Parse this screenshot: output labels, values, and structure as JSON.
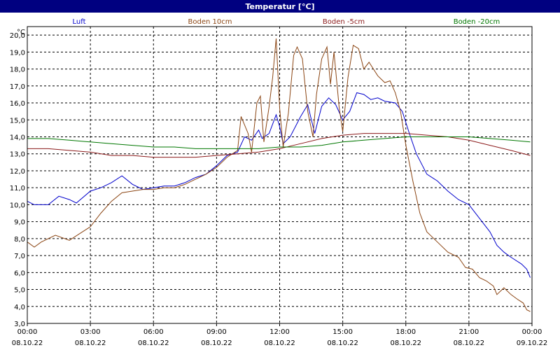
{
  "chart_data": {
    "type": "line",
    "title": "Temperatur [°C]",
    "ylabel": "°C",
    "ylim": [
      3.0,
      20.5
    ],
    "xlim": [
      "2022-10-08T00:00",
      "2022-10-09T00:00"
    ],
    "grid": true,
    "legend_position": "top",
    "y_ticks": [
      "3,0",
      "4,0",
      "5,0",
      "6,0",
      "7,0",
      "8,0",
      "9,0",
      "10,0",
      "11,0",
      "12,0",
      "13,0",
      "14,0",
      "15,0",
      "16,0",
      "17,0",
      "18,0",
      "19,0",
      "20,0"
    ],
    "y_tick_values": [
      3,
      4,
      5,
      6,
      7,
      8,
      9,
      10,
      11,
      12,
      13,
      14,
      15,
      16,
      17,
      18,
      19,
      20
    ],
    "x_ticks": [
      {
        "time": "00:00",
        "date": "08.10.22"
      },
      {
        "time": "03:00",
        "date": "08.10.22"
      },
      {
        "time": "06:00",
        "date": "08.10.22"
      },
      {
        "time": "09:00",
        "date": "08.10.22"
      },
      {
        "time": "12:00",
        "date": "08.10.22"
      },
      {
        "time": "15:00",
        "date": "08.10.22"
      },
      {
        "time": "18:00",
        "date": "08.10.22"
      },
      {
        "time": "21:00",
        "date": "08.10.22"
      },
      {
        "time": "00:00",
        "date": "09.10.22"
      }
    ],
    "x_tick_hours": [
      0,
      3,
      6,
      9,
      12,
      15,
      18,
      21,
      24
    ],
    "series": [
      {
        "name": "Luft",
        "color": "#0000cc",
        "points": [
          [
            "2022-10-08T00:00",
            10.2
          ],
          [
            "2022-10-08T00:20",
            10.0
          ],
          [
            "2022-10-08T01:00",
            10.0
          ],
          [
            "2022-10-08T01:30",
            10.5
          ],
          [
            "2022-10-08T02:00",
            10.3
          ],
          [
            "2022-10-08T02:20",
            10.1
          ],
          [
            "2022-10-08T03:00",
            10.8
          ],
          [
            "2022-10-08T03:30",
            11.0
          ],
          [
            "2022-10-08T04:00",
            11.3
          ],
          [
            "2022-10-08T04:30",
            11.7
          ],
          [
            "2022-10-08T05:00",
            11.2
          ],
          [
            "2022-10-08T05:30",
            10.9
          ],
          [
            "2022-10-08T06:00",
            11.0
          ],
          [
            "2022-10-08T06:30",
            11.1
          ],
          [
            "2022-10-08T07:00",
            11.1
          ],
          [
            "2022-10-08T07:30",
            11.3
          ],
          [
            "2022-10-08T08:00",
            11.6
          ],
          [
            "2022-10-08T08:30",
            11.8
          ],
          [
            "2022-10-08T09:00",
            12.3
          ],
          [
            "2022-10-08T09:30",
            12.9
          ],
          [
            "2022-10-08T10:00",
            13.1
          ],
          [
            "2022-10-08T10:20",
            14.0
          ],
          [
            "2022-10-08T10:40",
            13.8
          ],
          [
            "2022-10-08T11:00",
            14.4
          ],
          [
            "2022-10-08T11:10",
            13.9
          ],
          [
            "2022-10-08T11:30",
            14.2
          ],
          [
            "2022-10-08T11:50",
            15.3
          ],
          [
            "2022-10-08T12:00",
            14.6
          ],
          [
            "2022-10-08T12:10",
            13.6
          ],
          [
            "2022-10-08T12:30",
            14.0
          ],
          [
            "2022-10-08T13:00",
            15.2
          ],
          [
            "2022-10-08T13:20",
            15.9
          ],
          [
            "2022-10-08T13:40",
            14.2
          ],
          [
            "2022-10-08T14:00",
            15.8
          ],
          [
            "2022-10-08T14:20",
            16.3
          ],
          [
            "2022-10-08T14:40",
            15.9
          ],
          [
            "2022-10-08T15:00",
            15.0
          ],
          [
            "2022-10-08T15:20",
            15.5
          ],
          [
            "2022-10-08T15:40",
            16.6
          ],
          [
            "2022-10-08T16:00",
            16.5
          ],
          [
            "2022-10-08T16:20",
            16.2
          ],
          [
            "2022-10-08T16:40",
            16.3
          ],
          [
            "2022-10-08T17:00",
            16.1
          ],
          [
            "2022-10-08T17:30",
            16.0
          ],
          [
            "2022-10-08T17:50",
            15.5
          ],
          [
            "2022-10-08T18:10",
            14.2
          ],
          [
            "2022-10-08T18:30",
            13.0
          ],
          [
            "2022-10-08T19:00",
            11.8
          ],
          [
            "2022-10-08T19:30",
            11.4
          ],
          [
            "2022-10-08T20:00",
            10.8
          ],
          [
            "2022-10-08T20:30",
            10.3
          ],
          [
            "2022-10-08T21:00",
            10.0
          ],
          [
            "2022-10-08T21:30",
            9.2
          ],
          [
            "2022-10-08T22:00",
            8.4
          ],
          [
            "2022-10-08T22:20",
            7.6
          ],
          [
            "2022-10-08T22:40",
            7.2
          ],
          [
            "2022-10-08T23:00",
            6.9
          ],
          [
            "2022-10-08T23:30",
            6.5
          ],
          [
            "2022-10-08T23:45",
            6.2
          ],
          [
            "2022-10-08T23:55",
            5.7
          ]
        ]
      },
      {
        "name": "Boden 10cm",
        "color": "#8b4513",
        "points": [
          [
            "2022-10-08T00:00",
            7.8
          ],
          [
            "2022-10-08T00:20",
            7.5
          ],
          [
            "2022-10-08T00:40",
            7.8
          ],
          [
            "2022-10-08T01:20",
            8.2
          ],
          [
            "2022-10-08T02:00",
            7.9
          ],
          [
            "2022-10-08T02:30",
            8.3
          ],
          [
            "2022-10-08T03:00",
            8.7
          ],
          [
            "2022-10-08T03:30",
            9.5
          ],
          [
            "2022-10-08T04:00",
            10.2
          ],
          [
            "2022-10-08T04:30",
            10.7
          ],
          [
            "2022-10-08T05:00",
            10.8
          ],
          [
            "2022-10-08T05:30",
            10.9
          ],
          [
            "2022-10-08T06:00",
            10.9
          ],
          [
            "2022-10-08T06:30",
            11.0
          ],
          [
            "2022-10-08T07:00",
            11.0
          ],
          [
            "2022-10-08T07:30",
            11.2
          ],
          [
            "2022-10-08T08:00",
            11.5
          ],
          [
            "2022-10-08T08:30",
            11.8
          ],
          [
            "2022-10-08T09:00",
            12.2
          ],
          [
            "2022-10-08T09:30",
            12.8
          ],
          [
            "2022-10-08T10:00",
            13.2
          ],
          [
            "2022-10-08T10:10",
            15.2
          ],
          [
            "2022-10-08T10:30",
            14.2
          ],
          [
            "2022-10-08T10:40",
            13.1
          ],
          [
            "2022-10-08T10:55",
            16.0
          ],
          [
            "2022-10-08T11:05",
            16.4
          ],
          [
            "2022-10-08T11:15",
            13.7
          ],
          [
            "2022-10-08T11:30",
            15.8
          ],
          [
            "2022-10-08T11:40",
            17.5
          ],
          [
            "2022-10-08T11:50",
            19.8
          ],
          [
            "2022-10-08T12:00",
            15.7
          ],
          [
            "2022-10-08T12:10",
            13.4
          ],
          [
            "2022-10-08T12:25",
            15.4
          ],
          [
            "2022-10-08T12:40",
            18.8
          ],
          [
            "2022-10-08T12:50",
            19.3
          ],
          [
            "2022-10-08T13:05",
            18.6
          ],
          [
            "2022-10-08T13:20",
            15.5
          ],
          [
            "2022-10-08T13:35",
            14.0
          ],
          [
            "2022-10-08T13:45",
            16.5
          ],
          [
            "2022-10-08T14:00",
            18.6
          ],
          [
            "2022-10-08T14:15",
            19.3
          ],
          [
            "2022-10-08T14:25",
            17.1
          ],
          [
            "2022-10-08T14:35",
            19.0
          ],
          [
            "2022-10-08T14:50",
            15.7
          ],
          [
            "2022-10-08T15:00",
            14.3
          ],
          [
            "2022-10-08T15:15",
            17.5
          ],
          [
            "2022-10-08T15:30",
            19.4
          ],
          [
            "2022-10-08T15:45",
            19.2
          ],
          [
            "2022-10-08T16:00",
            18.0
          ],
          [
            "2022-10-08T16:15",
            18.4
          ],
          [
            "2022-10-08T16:40",
            17.6
          ],
          [
            "2022-10-08T17:00",
            17.2
          ],
          [
            "2022-10-08T17:15",
            17.3
          ],
          [
            "2022-10-08T17:30",
            16.6
          ],
          [
            "2022-10-08T17:45",
            15.5
          ],
          [
            "2022-10-08T18:00",
            13.5
          ],
          [
            "2022-10-08T18:20",
            11.4
          ],
          [
            "2022-10-08T18:40",
            9.5
          ],
          [
            "2022-10-08T19:00",
            8.4
          ],
          [
            "2022-10-08T19:30",
            7.8
          ],
          [
            "2022-10-08T20:00",
            7.2
          ],
          [
            "2022-10-08T20:30",
            6.9
          ],
          [
            "2022-10-08T20:50",
            6.3
          ],
          [
            "2022-10-08T21:10",
            6.2
          ],
          [
            "2022-10-08T21:30",
            5.7
          ],
          [
            "2022-10-08T21:50",
            5.5
          ],
          [
            "2022-10-08T22:10",
            5.2
          ],
          [
            "2022-10-08T22:20",
            4.7
          ],
          [
            "2022-10-08T22:40",
            5.1
          ],
          [
            "2022-10-08T23:00",
            4.7
          ],
          [
            "2022-10-08T23:20",
            4.4
          ],
          [
            "2022-10-08T23:35",
            4.2
          ],
          [
            "2022-10-08T23:45",
            3.8
          ],
          [
            "2022-10-08T23:55",
            3.7
          ]
        ]
      },
      {
        "name": "Boden -5cm",
        "color": "#8b1a1a",
        "points": [
          [
            "2022-10-08T00:00",
            13.3
          ],
          [
            "2022-10-08T01:00",
            13.3
          ],
          [
            "2022-10-08T02:00",
            13.2
          ],
          [
            "2022-10-08T03:00",
            13.1
          ],
          [
            "2022-10-08T04:00",
            12.9
          ],
          [
            "2022-10-08T05:00",
            12.9
          ],
          [
            "2022-10-08T06:00",
            12.8
          ],
          [
            "2022-10-08T07:00",
            12.8
          ],
          [
            "2022-10-08T08:00",
            12.8
          ],
          [
            "2022-10-08T09:00",
            12.9
          ],
          [
            "2022-10-08T10:00",
            13.0
          ],
          [
            "2022-10-08T11:00",
            13.1
          ],
          [
            "2022-10-08T12:00",
            13.3
          ],
          [
            "2022-10-08T13:00",
            13.6
          ],
          [
            "2022-10-08T14:00",
            13.9
          ],
          [
            "2022-10-08T15:00",
            14.1
          ],
          [
            "2022-10-08T16:00",
            14.2
          ],
          [
            "2022-10-08T17:00",
            14.2
          ],
          [
            "2022-10-08T18:00",
            14.2
          ],
          [
            "2022-10-08T19:00",
            14.1
          ],
          [
            "2022-10-08T20:00",
            14.0
          ],
          [
            "2022-10-08T21:00",
            13.8
          ],
          [
            "2022-10-08T22:00",
            13.5
          ],
          [
            "2022-10-08T23:00",
            13.2
          ],
          [
            "2022-10-08T23:55",
            12.9
          ]
        ]
      },
      {
        "name": "Boden -20cm",
        "color": "#007700",
        "points": [
          [
            "2022-10-08T00:00",
            13.9
          ],
          [
            "2022-10-08T01:00",
            13.9
          ],
          [
            "2022-10-08T02:00",
            13.8
          ],
          [
            "2022-10-08T03:00",
            13.7
          ],
          [
            "2022-10-08T04:00",
            13.6
          ],
          [
            "2022-10-08T05:00",
            13.5
          ],
          [
            "2022-10-08T06:00",
            13.4
          ],
          [
            "2022-10-08T07:00",
            13.4
          ],
          [
            "2022-10-08T08:00",
            13.3
          ],
          [
            "2022-10-08T09:00",
            13.3
          ],
          [
            "2022-10-08T10:00",
            13.3
          ],
          [
            "2022-10-08T11:00",
            13.3
          ],
          [
            "2022-10-08T12:00",
            13.4
          ],
          [
            "2022-10-08T13:00",
            13.4
          ],
          [
            "2022-10-08T14:00",
            13.5
          ],
          [
            "2022-10-08T15:00",
            13.7
          ],
          [
            "2022-10-08T16:00",
            13.8
          ],
          [
            "2022-10-08T17:00",
            13.9
          ],
          [
            "2022-10-08T18:00",
            14.0
          ],
          [
            "2022-10-08T19:00",
            14.0
          ],
          [
            "2022-10-08T20:00",
            14.0
          ],
          [
            "2022-10-08T21:00",
            14.0
          ],
          [
            "2022-10-08T22:00",
            13.9
          ],
          [
            "2022-10-08T23:00",
            13.8
          ],
          [
            "2022-10-08T23:55",
            13.7
          ]
        ]
      }
    ]
  }
}
